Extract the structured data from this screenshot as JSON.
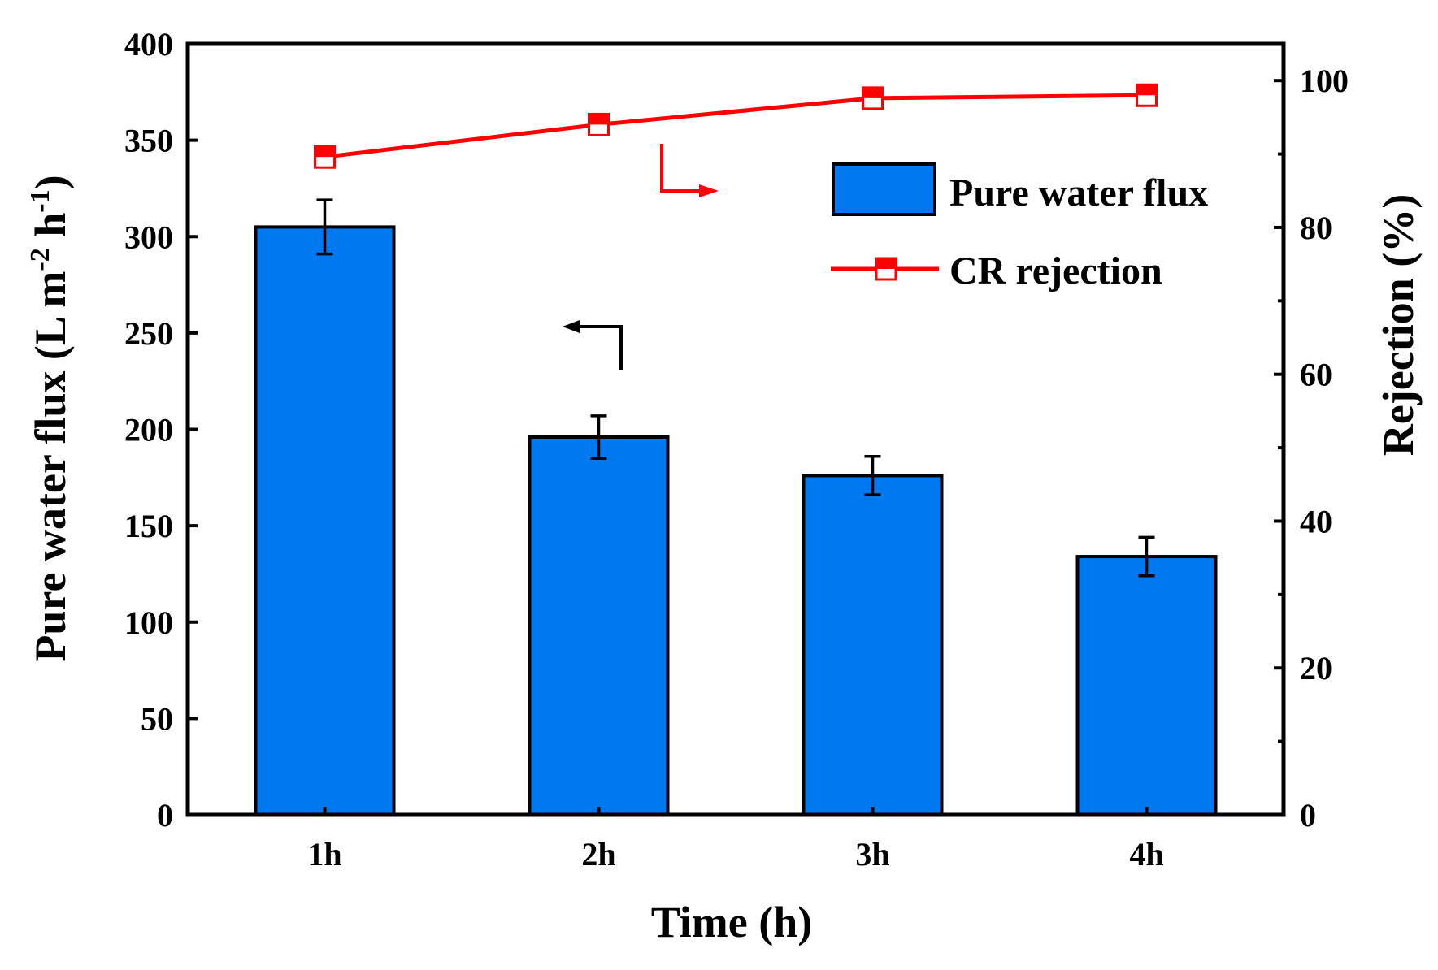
{
  "chart_data": {
    "type": "bar",
    "categories": [
      "1h",
      "2h",
      "3h",
      "4h"
    ],
    "series": [
      {
        "name": "Pure water flux",
        "type": "bar",
        "axis": "left",
        "color": "#0078f0",
        "values": [
          305,
          196,
          176,
          134
        ],
        "errors": [
          14,
          11,
          10,
          10
        ]
      },
      {
        "name": "CR rejection",
        "type": "line",
        "axis": "right",
        "color": "#ff0000",
        "values": [
          89.6,
          94.0,
          97.6,
          98.0
        ]
      }
    ],
    "xlabel": "Time (h)",
    "ylabel_left": {
      "main": "Pure water flux (L m",
      "sup1": "-2",
      "mid": " h",
      "sup2": "-1",
      "end": ")"
    },
    "ylabel_right": "Rejection (%)",
    "ylim_left": [
      0,
      400
    ],
    "ylim_right": [
      0,
      105
    ],
    "yticks_left": [
      0,
      50,
      100,
      150,
      200,
      250,
      300,
      350,
      400
    ],
    "yticks_right": [
      0,
      20,
      40,
      60,
      80,
      100
    ],
    "legend": {
      "position": "top-right",
      "items": [
        "Pure water flux",
        "CR rejection"
      ]
    },
    "grid": false
  }
}
